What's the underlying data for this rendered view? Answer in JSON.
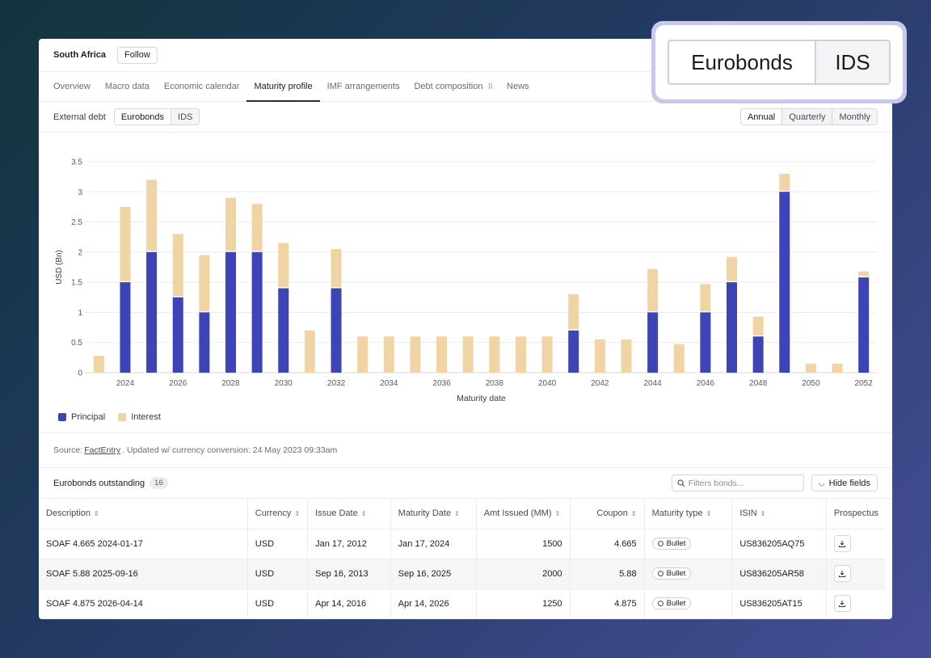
{
  "header": {
    "country": "South Africa",
    "follow_label": "Follow"
  },
  "tabs": [
    {
      "label": "Overview"
    },
    {
      "label": "Macro data"
    },
    {
      "label": "Economic calendar"
    },
    {
      "label": "Maturity profile",
      "active": true
    },
    {
      "label": "IMF arrangements"
    },
    {
      "label": "Debt composition"
    },
    {
      "label": "News"
    }
  ],
  "filters": {
    "external_debt_label": "External debt",
    "debt_types": [
      "Eurobonds",
      "IDS"
    ],
    "selected_debt_type": "Eurobonds",
    "frequencies": [
      "Annual",
      "Quarterly",
      "Monthly"
    ],
    "selected_frequency": "Annual"
  },
  "chart_data": {
    "type": "bar",
    "stacked": true,
    "xlabel": "Maturity date",
    "ylabel": "USD (Bn)",
    "ylim": [
      0,
      3.5
    ],
    "yticks": [
      "0",
      "0.5",
      "1",
      "1.5",
      "2",
      "2.5",
      "3",
      "3.5"
    ],
    "xtick_labels": [
      "2024",
      "2026",
      "2028",
      "2030",
      "2032",
      "2034",
      "2036",
      "2038",
      "2040",
      "2042",
      "2044",
      "2046",
      "2048",
      "2050",
      "2052"
    ],
    "categories": [
      2023,
      2024,
      2025,
      2026,
      2027,
      2028,
      2029,
      2030,
      2031,
      2032,
      2033,
      2034,
      2035,
      2036,
      2037,
      2038,
      2039,
      2040,
      2041,
      2042,
      2043,
      2044,
      2045,
      2046,
      2047,
      2048,
      2049,
      2050,
      2051,
      2052
    ],
    "series": [
      {
        "name": "Principal",
        "color": "#3d44b8",
        "values": [
          0,
          1.5,
          2.0,
          1.25,
          1.0,
          2.0,
          2.0,
          1.4,
          0,
          1.4,
          0,
          0,
          0,
          0,
          0,
          0,
          0,
          0,
          0.7,
          0,
          0,
          1.0,
          0,
          1.0,
          1.5,
          0.6,
          3.0,
          0,
          0,
          1.58
        ]
      },
      {
        "name": "Interest",
        "color": "#f1d4a4",
        "values": [
          0.28,
          1.25,
          1.2,
          1.05,
          0.95,
          0.9,
          0.8,
          0.75,
          0.7,
          0.65,
          0.6,
          0.6,
          0.6,
          0.6,
          0.6,
          0.6,
          0.6,
          0.6,
          0.6,
          0.55,
          0.55,
          0.72,
          0.47,
          0.47,
          0.42,
          0.33,
          0.3,
          0.15,
          0.15,
          0.1
        ]
      }
    ],
    "legend_position": "bottom-left",
    "grid": true
  },
  "source": {
    "prefix": "Source:",
    "link": "FactEntry",
    "suffix": ". Updated w/ currency conversion: 24 May 2023 09:33am"
  },
  "table": {
    "title": "Eurobonds outstanding",
    "count": "16",
    "search_placeholder": "Filters bonds...",
    "hide_fields_label": "Hide fields",
    "columns": [
      "Description",
      "Currency",
      "Issue Date",
      "Maturity Date",
      "Amt Issued (MM)",
      "Coupon",
      "Maturity type",
      "ISIN",
      "Prospectus"
    ],
    "rows": [
      {
        "description": "SOAF 4.665 2024-01-17",
        "currency": "USD",
        "issue_date": "Jan 17, 2012",
        "maturity_date": "Jan 17, 2024",
        "amount": "1500",
        "coupon": "4.665",
        "type": "Bullet",
        "isin": "US836205AQ75"
      },
      {
        "description": "SOAF 5.88 2025-09-16",
        "currency": "USD",
        "issue_date": "Sep 16, 2013",
        "maturity_date": "Sep 16, 2025",
        "amount": "2000",
        "coupon": "5.88",
        "type": "Bullet",
        "isin": "US836205AR58"
      },
      {
        "description": "SOAF 4.875 2026-04-14",
        "currency": "USD",
        "issue_date": "Apr 14, 2016",
        "maturity_date": "Apr 14, 2026",
        "amount": "1250",
        "coupon": "4.875",
        "type": "Bullet",
        "isin": "US836205AT15"
      }
    ]
  },
  "zoom_callout": {
    "options": [
      "Eurobonds",
      "IDS"
    ]
  }
}
